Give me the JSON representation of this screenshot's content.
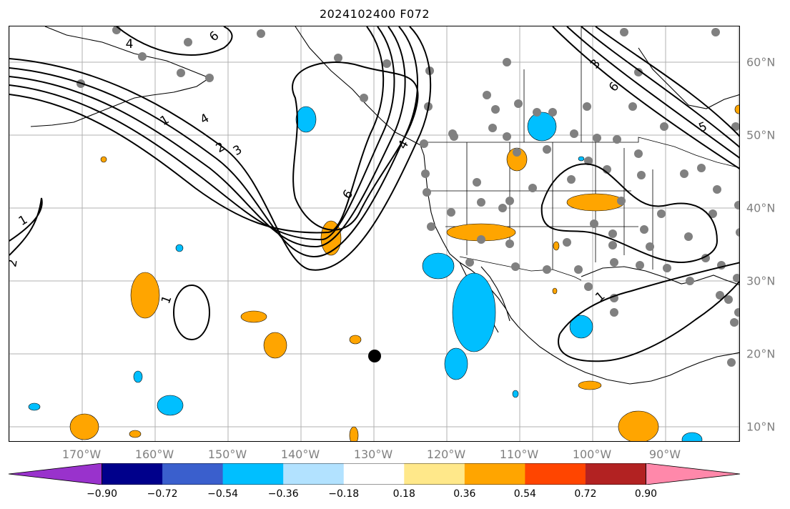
{
  "title": "2024102400 F072",
  "lon_labels": [
    "170°W",
    "160°W",
    "150°W",
    "140°W",
    "130°W",
    "120°W",
    "110°W",
    "100°W",
    "90°W"
  ],
  "lat_labels": [
    "60°N",
    "50°N",
    "40°N",
    "30°N",
    "20°N",
    "10°N"
  ],
  "contour_labels": [
    "6",
    "4",
    "1",
    "4",
    "2",
    "3",
    "6",
    "1",
    "2",
    "1",
    "4",
    "3",
    "6",
    "5",
    "1"
  ],
  "colorbar": {
    "ticks": [
      "−0.90",
      "−0.72",
      "−0.54",
      "−0.36",
      "−0.18",
      "0.18",
      "0.36",
      "0.54",
      "0.72",
      "0.90"
    ],
    "colors": [
      "#9932cc",
      "#00008b",
      "#3a5fcd",
      "#00bfff",
      "#b2e2ff",
      "#ffffff",
      "#ffe88a",
      "#ffa500",
      "#ff4500",
      "#b22222",
      "#ff88aa"
    ]
  },
  "colors": {
    "grid": "#b0b0b0",
    "coast": "#000000",
    "station": "#808080",
    "positive_fill": "#ffa500",
    "negative_fill": "#00bfff",
    "marker": "#000000"
  }
}
